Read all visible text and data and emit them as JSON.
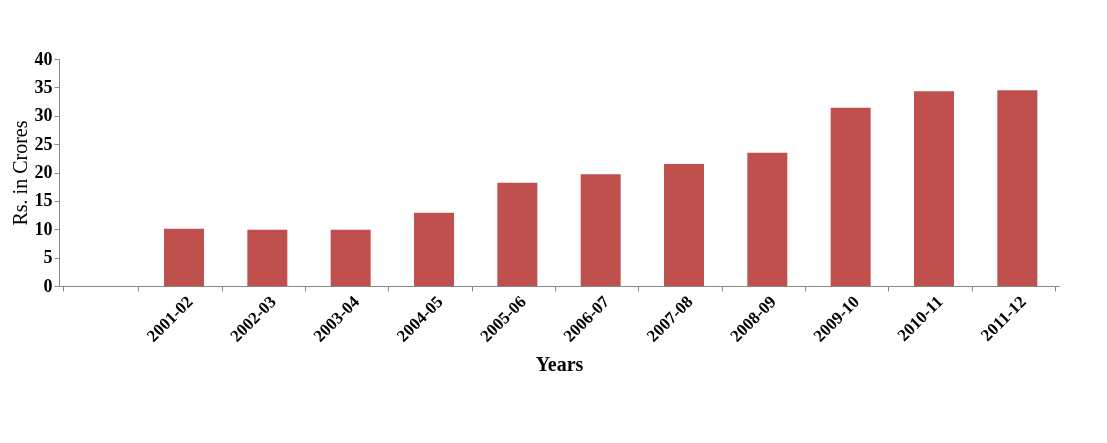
{
  "chart_data": {
    "type": "bar",
    "xlabel": "Years",
    "ylabel": "Rs. in Crores",
    "categories": [
      null,
      "2001-02",
      "2002-03",
      "2003-04",
      "2004-05",
      "2005-06",
      "2006-07",
      "2007-08",
      "2008-09",
      "2009-10",
      "2010-11",
      "2011-12"
    ],
    "values": [
      null,
      10.1,
      9.9,
      9.9,
      12.9,
      18.2,
      19.7,
      21.5,
      23.5,
      31.4,
      34.3,
      34.5
    ],
    "color": "#c0504d",
    "ylim": [
      0,
      40
    ],
    "yticks": [
      0,
      5,
      10,
      15,
      20,
      25,
      30,
      35,
      40
    ],
    "grid": false
  }
}
